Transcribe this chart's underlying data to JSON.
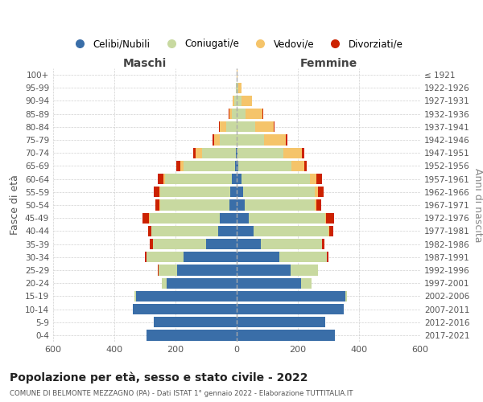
{
  "age_groups": [
    "100+",
    "95-99",
    "90-94",
    "85-89",
    "80-84",
    "75-79",
    "70-74",
    "65-69",
    "60-64",
    "55-59",
    "50-54",
    "45-49",
    "40-44",
    "35-39",
    "30-34",
    "25-29",
    "20-24",
    "15-19",
    "10-14",
    "5-9",
    "0-4"
  ],
  "birth_years": [
    "≤ 1921",
    "1922-1926",
    "1927-1931",
    "1932-1936",
    "1937-1941",
    "1942-1946",
    "1947-1951",
    "1952-1956",
    "1957-1961",
    "1962-1966",
    "1967-1971",
    "1972-1976",
    "1977-1981",
    "1982-1986",
    "1987-1991",
    "1992-1996",
    "1997-2001",
    "2002-2006",
    "2007-2011",
    "2012-2016",
    "2017-2021"
  ],
  "maschi": {
    "celibe": [
      0,
      0,
      0,
      0,
      0,
      0,
      3,
      5,
      15,
      20,
      25,
      55,
      60,
      100,
      175,
      195,
      230,
      330,
      340,
      270,
      295
    ],
    "coniugato": [
      1,
      2,
      8,
      15,
      35,
      55,
      110,
      170,
      220,
      230,
      225,
      230,
      220,
      175,
      120,
      60,
      15,
      5,
      0,
      0,
      0
    ],
    "vedovo": [
      0,
      0,
      5,
      10,
      20,
      20,
      20,
      10,
      5,
      3,
      2,
      2,
      0,
      0,
      0,
      0,
      0,
      0,
      0,
      0,
      0
    ],
    "divorziato": [
      0,
      0,
      0,
      2,
      3,
      5,
      10,
      12,
      18,
      18,
      15,
      20,
      10,
      8,
      5,
      2,
      0,
      0,
      0,
      0,
      0
    ]
  },
  "femmine": {
    "nubile": [
      0,
      0,
      0,
      0,
      0,
      0,
      3,
      5,
      15,
      20,
      25,
      40,
      55,
      80,
      140,
      175,
      210,
      355,
      350,
      290,
      320
    ],
    "coniugata": [
      1,
      5,
      15,
      30,
      60,
      90,
      150,
      175,
      225,
      235,
      230,
      250,
      245,
      200,
      155,
      90,
      35,
      5,
      0,
      0,
      0
    ],
    "vedova": [
      2,
      10,
      35,
      55,
      60,
      70,
      60,
      40,
      20,
      10,
      5,
      3,
      2,
      0,
      0,
      0,
      0,
      0,
      0,
      0,
      0
    ],
    "divorziata": [
      0,
      0,
      0,
      2,
      3,
      5,
      8,
      10,
      18,
      20,
      15,
      25,
      15,
      8,
      5,
      2,
      0,
      0,
      0,
      0,
      0
    ]
  },
  "colors": {
    "celibe": "#3a6ea8",
    "coniugato": "#c8d9a0",
    "vedovo": "#f5c46a",
    "divorziato": "#cc2200"
  },
  "title": "Popolazione per età, sesso e stato civile - 2022",
  "subtitle": "COMUNE DI BELMONTE MEZZAGNO (PA) - Dati ISTAT 1° gennaio 2022 - Elaborazione TUTTITALIA.IT",
  "ylabel_left": "Fasce di età",
  "ylabel_right": "Anni di nascita",
  "xlabel_left": "Maschi",
  "xlabel_right": "Femmine",
  "xlim": 600,
  "background_color": "#ffffff",
  "grid_color": "#cccccc"
}
